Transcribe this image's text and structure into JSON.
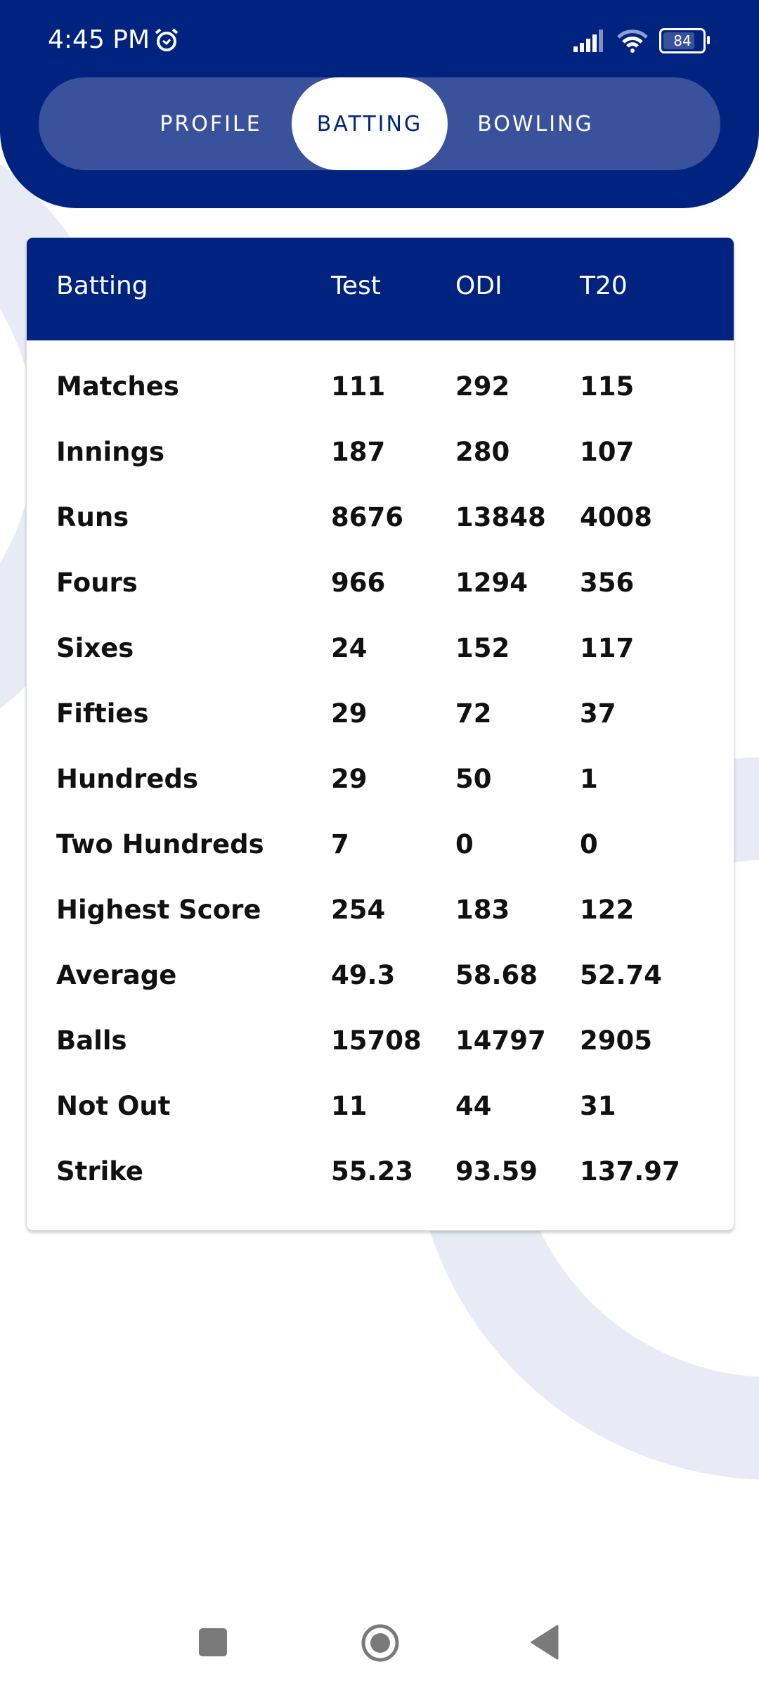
{
  "status_bar": {
    "time": "4:45 PM",
    "battery": "84"
  },
  "tabs": [
    {
      "label": "PROFILE",
      "active": false
    },
    {
      "label": "BATTING",
      "active": true
    },
    {
      "label": "BOWLING",
      "active": false
    }
  ],
  "table": {
    "headers": [
      "Batting",
      "Test",
      "ODI",
      "T20"
    ],
    "rows": [
      [
        "Matches",
        "111",
        "292",
        "115"
      ],
      [
        "Innings",
        "187",
        "280",
        "107"
      ],
      [
        "Runs",
        "8676",
        "13848",
        "4008"
      ],
      [
        "Fours",
        "966",
        "1294",
        "356"
      ],
      [
        "Sixes",
        "24",
        "152",
        "117"
      ],
      [
        "Fifties",
        "29",
        "72",
        "37"
      ],
      [
        "Hundreds",
        "29",
        "50",
        "1"
      ],
      [
        "Two Hundreds",
        "7",
        "0",
        "0"
      ],
      [
        "Highest Score",
        "254",
        "183",
        "122"
      ],
      [
        "Average",
        "49.3",
        "58.68",
        "52.74"
      ],
      [
        "Balls",
        "15708",
        "14797",
        "2905"
      ],
      [
        "Not Out",
        "11",
        "44",
        "31"
      ],
      [
        "Strike",
        "55.23",
        "93.59",
        "137.97"
      ]
    ]
  },
  "colors": {
    "primary": "#00237f",
    "tab_track": "#3a529b",
    "decor": "#e8ebf5"
  },
  "navbar": {
    "icons": [
      "recents-icon",
      "home-icon",
      "back-icon"
    ]
  }
}
